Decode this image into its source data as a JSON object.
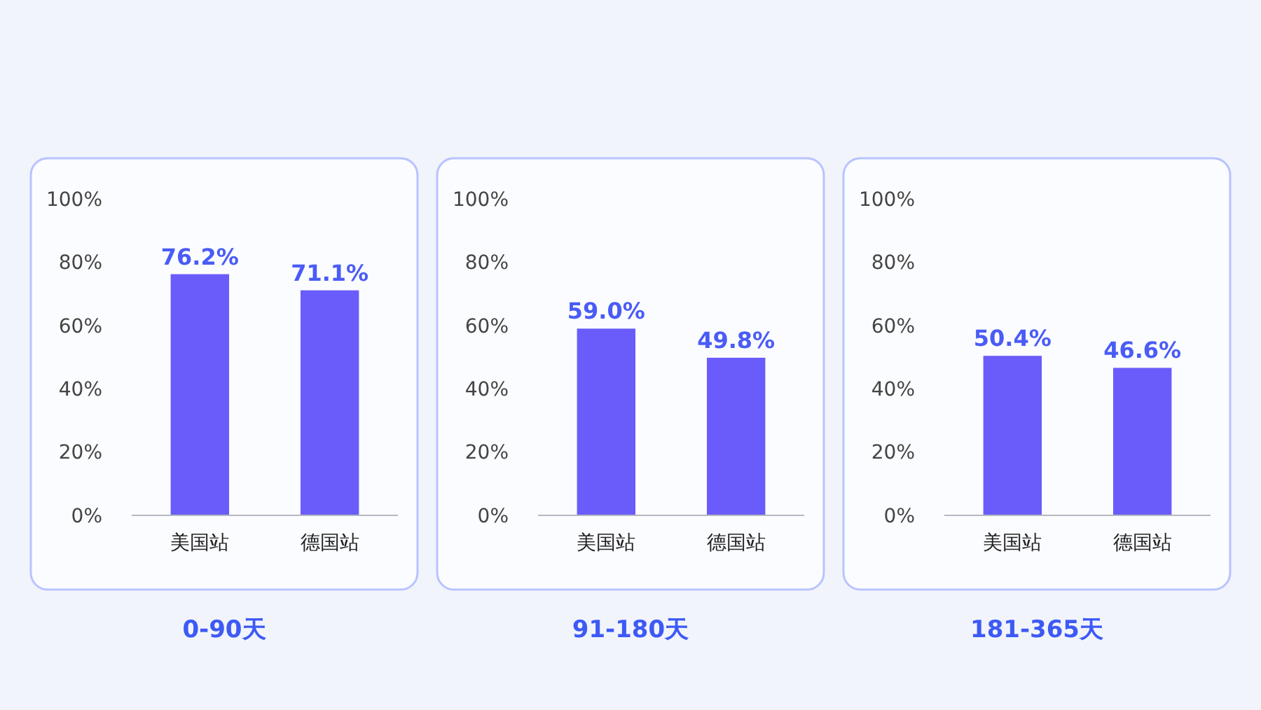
{
  "chart_data": [
    {
      "type": "bar",
      "xlabel": "0-90天",
      "categories": [
        "美国站",
        "德国站"
      ],
      "values": [
        76.2,
        71.1
      ],
      "color": "#6a5cfa",
      "ylim": [
        0,
        100
      ],
      "yticks": [
        {
          "value": 0,
          "label": "0%"
        },
        {
          "value": 20,
          "label": "20%"
        },
        {
          "value": 40,
          "label": "40%"
        },
        {
          "value": 60,
          "label": "60%"
        },
        {
          "value": 80,
          "label": "80%"
        },
        {
          "value": 100,
          "label": "100%"
        }
      ],
      "value_labels": [
        "76.2%",
        "71.1%"
      ],
      "grid": false
    },
    {
      "type": "bar",
      "xlabel": "91-180天",
      "categories": [
        "美国站",
        "德国站"
      ],
      "values": [
        59.0,
        49.8
      ],
      "color": "#6a5cfa",
      "ylim": [
        0,
        100
      ],
      "yticks": [
        {
          "value": 0,
          "label": "0%"
        },
        {
          "value": 20,
          "label": "20%"
        },
        {
          "value": 40,
          "label": "40%"
        },
        {
          "value": 60,
          "label": "60%"
        },
        {
          "value": 80,
          "label": "80%"
        },
        {
          "value": 100,
          "label": "100%"
        }
      ],
      "value_labels": [
        "59.0%",
        "49.8%"
      ],
      "grid": false
    },
    {
      "type": "bar",
      "xlabel": "181-365天",
      "categories": [
        "美国站",
        "德国站"
      ],
      "values": [
        50.4,
        46.6
      ],
      "color": "#6a5cfa",
      "ylim": [
        0,
        100
      ],
      "yticks": [
        {
          "value": 0,
          "label": "0%"
        },
        {
          "value": 20,
          "label": "20%"
        },
        {
          "value": 40,
          "label": "40%"
        },
        {
          "value": 60,
          "label": "60%"
        },
        {
          "value": 80,
          "label": "80%"
        },
        {
          "value": 100,
          "label": "100%"
        }
      ],
      "value_labels": [
        "50.4%",
        "46.6%"
      ],
      "grid": false
    }
  ]
}
